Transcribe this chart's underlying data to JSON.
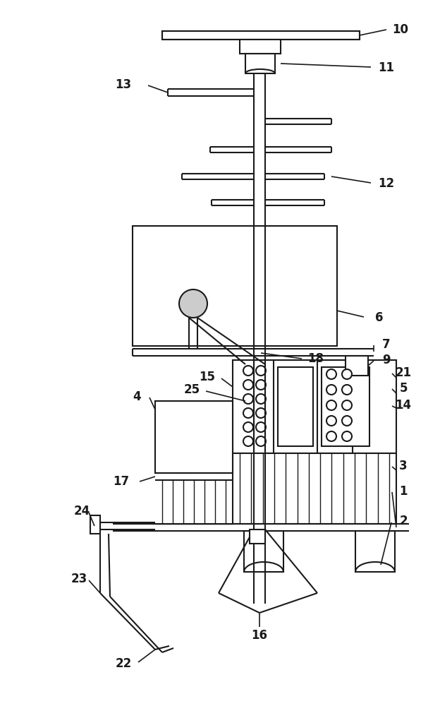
{
  "fig_width": 6.24,
  "fig_height": 10.0,
  "dpi": 100,
  "bg_color": "#ffffff",
  "line_color": "#1a1a1a",
  "lw": 1.5,
  "lw_thin": 1.0
}
